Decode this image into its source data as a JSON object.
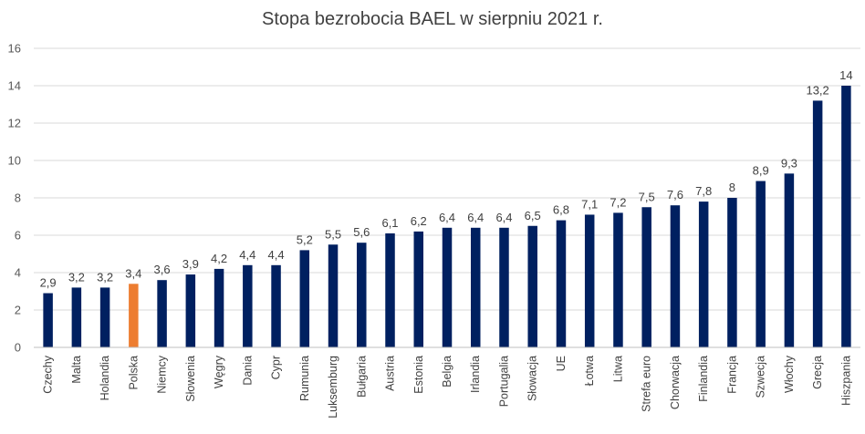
{
  "chart_data": {
    "type": "bar",
    "title": "Stopa bezrobocia BAEL w sierpniu 2021 r.",
    "xlabel": "",
    "ylabel": "",
    "ylim": [
      0,
      16
    ],
    "yticks": [
      "0",
      "2",
      "4",
      "6",
      "8",
      "10",
      "12",
      "14",
      "16"
    ],
    "grid": true,
    "legend": "none",
    "bar_color": "#002060",
    "highlight_color": "#ED7D31",
    "highlight_category": "Polska",
    "categories": [
      "Czechy",
      "Malta",
      "Holandia",
      "Polska",
      "Niemcy",
      "Słowenia",
      "Węgry",
      "Dania",
      "Cypr",
      "Rumunia",
      "Luksemburg",
      "Bułgaria",
      "Austria",
      "Estonia",
      "Belgia",
      "Irlandia",
      "Portugalia",
      "Słowacja",
      "UE",
      "Łotwa",
      "Litwa",
      "Strefa euro",
      "Chorwacja",
      "Finlandia",
      "Francja",
      "Szwecja",
      "Włochy",
      "Grecja",
      "Hiszpania"
    ],
    "values": [
      2.9,
      3.2,
      3.2,
      3.4,
      3.6,
      3.9,
      4.2,
      4.4,
      4.4,
      5.2,
      5.5,
      5.6,
      6.1,
      6.2,
      6.4,
      6.4,
      6.4,
      6.5,
      6.8,
      7.1,
      7.2,
      7.5,
      7.6,
      7.8,
      8,
      8.9,
      9.3,
      13.2,
      14
    ],
    "data_labels": [
      "2,9",
      "3,2",
      "3,2",
      "3,4",
      "3,6",
      "3,9",
      "4,2",
      "4,4",
      "4,4",
      "5,2",
      "5,5",
      "5,6",
      "6,1",
      "6,2",
      "6,4",
      "6,4",
      "6,4",
      "6,5",
      "6,8",
      "7,1",
      "7,2",
      "7,5",
      "7,6",
      "7,8",
      "8",
      "8,9",
      "9,3",
      "13,2",
      "14"
    ]
  }
}
